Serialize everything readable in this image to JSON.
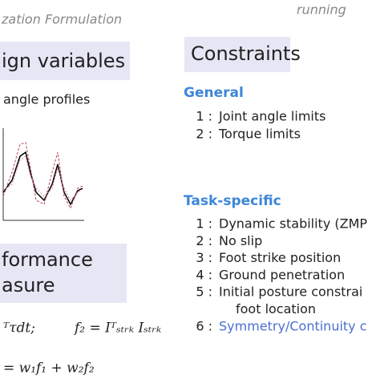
{
  "header": {
    "title": "zation Formulation",
    "note": "running"
  },
  "left": {
    "design_heading": "ign variables",
    "design_item": "angle profiles",
    "performance_heading": [
      "formance",
      "asure"
    ],
    "formula_1": "ᵀτdt;",
    "formula_2": "f₂ = Iᵀₛₜᵣₖ Iₛₜᵣₖ",
    "formula_3": "= w₁f₁ + w₂f₂"
  },
  "right": {
    "heading": "Constraints",
    "general": {
      "title": "General",
      "items": [
        {
          "num": "1 :",
          "text": "Joint angle limits"
        },
        {
          "num": "2 :",
          "text": "Torque limits"
        }
      ]
    },
    "task": {
      "title": "Task-specific",
      "items": [
        {
          "num": "1 :",
          "text": "Dynamic stability (ZMP"
        },
        {
          "num": "2 :",
          "text": "No slip"
        },
        {
          "num": "3 :",
          "text": "Foot strike position"
        },
        {
          "num": "4 :",
          "text": "Ground penetration"
        },
        {
          "num": "5 :",
          "text": "Initial posture constrai"
        },
        {
          "num": "",
          "text": "foot location"
        },
        {
          "num": "6 :",
          "text": "Symmetry/Continuity c"
        }
      ]
    }
  }
}
